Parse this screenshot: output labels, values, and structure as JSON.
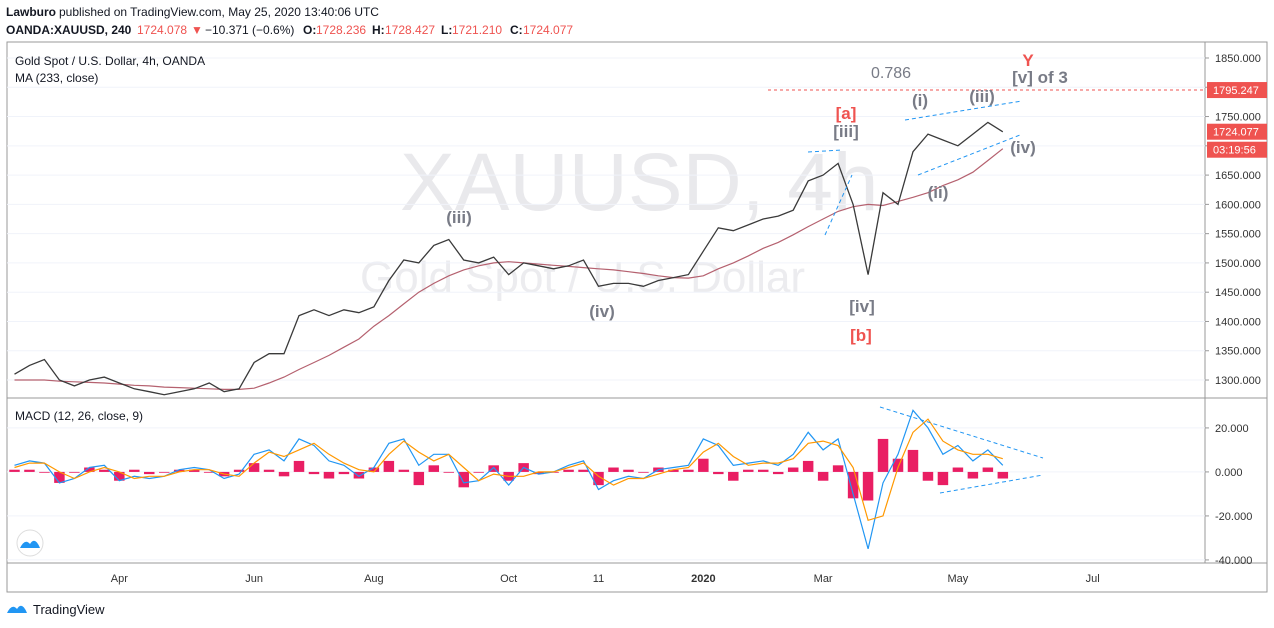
{
  "header": {
    "author": "Lawburo",
    "published": "published on TradingView.com, May 25, 2020 13:40:06 UTC",
    "symbol": "OANDA:XAUUSD, 240",
    "last": "1724.078",
    "arrow": "▼",
    "change": "−10.371 (−0.6%)",
    "o_label": "O:",
    "o": "1728.236",
    "h_label": "H:",
    "h": "1728.427",
    "l_label": "L:",
    "l": "1721.210",
    "c_label": "C:",
    "c": "1724.077"
  },
  "watermark": {
    "symbol": "XAUUSD, 4h",
    "description": "Gold Spot / U.S. Dollar"
  },
  "footer": {
    "brand": "TradingView"
  },
  "chart_data": [
    {
      "type": "line",
      "categories": [
        null,
        null,
        null,
        null,
        null,
        null,
        null,
        "Apr",
        null,
        null,
        null,
        null,
        null,
        null,
        null,
        null,
        "Jun",
        null,
        null,
        null,
        null,
        null,
        null,
        null,
        "Aug",
        null,
        null,
        null,
        null,
        null,
        null,
        null,
        null,
        "Oct",
        null,
        null,
        null,
        null,
        null,
        "11",
        null,
        null,
        null,
        null,
        null,
        null,
        "2020",
        null,
        null,
        null,
        null,
        null,
        null,
        null,
        "Mar",
        null,
        null,
        null,
        null,
        null,
        null,
        null,
        null,
        "May",
        null,
        null,
        null,
        null,
        null,
        null,
        null,
        null,
        "Jul",
        null,
        null,
        null,
        null,
        null,
        null,
        null
      ],
      "series": [
        {
          "name": "Gold Spot / U.S. Dollar, 4h, OANDA",
          "color": "#3a3a3a",
          "values": [
            1310,
            1325,
            1335,
            1300,
            1290,
            1300,
            1305,
            1295,
            1285,
            1280,
            1275,
            1280,
            1285,
            1295,
            1280,
            1285,
            1330,
            1345,
            1345,
            1410,
            1420,
            1410,
            1420,
            1415,
            1425,
            1470,
            1505,
            1500,
            1530,
            1540,
            1505,
            1500,
            1510,
            1480,
            1500,
            1495,
            1490,
            1495,
            1505,
            1460,
            1465,
            1465,
            1460,
            1470,
            1475,
            1480,
            1520,
            1560,
            1555,
            1565,
            1575,
            1580,
            1590,
            1640,
            1650,
            1670,
            1600,
            1480,
            1620,
            1600,
            1690,
            1720,
            1710,
            1700,
            1720,
            1740,
            1724,
            null,
            null,
            null,
            null,
            null,
            null,
            null,
            null,
            null,
            null,
            null,
            null,
            null
          ]
        },
        {
          "name": "MA (233, close)",
          "color": "#b5616f",
          "values": [
            1300,
            1300,
            1300,
            1298,
            1297,
            1296,
            1295,
            1293,
            1291,
            1290,
            1288,
            1287,
            1286,
            1285,
            1284,
            1284,
            1286,
            1295,
            1305,
            1318,
            1330,
            1342,
            1356,
            1370,
            1392,
            1410,
            1430,
            1450,
            1465,
            1478,
            1488,
            1495,
            1500,
            1502,
            1500,
            1498,
            1496,
            1494,
            1492,
            1490,
            1488,
            1485,
            1482,
            1478,
            1475,
            1474,
            1478,
            1490,
            1500,
            1512,
            1525,
            1535,
            1548,
            1562,
            1575,
            1588,
            1596,
            1600,
            1598,
            1605,
            1612,
            1620,
            1632,
            1642,
            1655,
            1675,
            1695,
            null,
            null,
            null,
            null,
            null,
            null,
            null,
            null,
            null,
            null,
            null,
            null,
            null
          ]
        }
      ],
      "ylim": [
        1269.3,
        1877.3
      ],
      "yticks": [
        {
          "value": 1300,
          "label": "1300.000"
        },
        {
          "value": 1350,
          "label": "1350.000"
        },
        {
          "value": 1400,
          "label": "1400.000"
        },
        {
          "value": 1450,
          "label": "1450.000"
        },
        {
          "value": 1500,
          "label": "1500.000"
        },
        {
          "value": 1550,
          "label": "1550.000"
        },
        {
          "value": 1600,
          "label": "1600.000"
        },
        {
          "value": 1650,
          "label": "1650.000"
        },
        {
          "value": 1700,
          "label": "1700.000"
        },
        {
          "value": 1750,
          "label": "1750.000"
        },
        {
          "value": 1800,
          "label": "1800.000"
        },
        {
          "value": 1850,
          "label": "1850.000"
        }
      ],
      "level": 1795.247,
      "last_price": 1724.077,
      "countdown": "03:19:56",
      "annotations": [
        "0.786",
        "Y",
        "[v] of 3",
        "(iii)",
        "(i)",
        "[a]",
        "[iii]",
        "(iv)",
        "(ii)",
        "(iii)",
        "(iv)",
        "[iv]",
        "[b]"
      ]
    },
    {
      "type": "macd",
      "series": [
        {
          "name": "MACD (12, 26, close, 9)",
          "color": "#2196f3",
          "values": [
            3,
            5,
            4,
            -5,
            -3,
            2,
            3,
            -4,
            -2,
            -3,
            -2,
            1,
            2,
            1,
            -3,
            -1,
            8,
            10,
            5,
            15,
            12,
            5,
            3,
            -2,
            2,
            13,
            15,
            3,
            8,
            8,
            -5,
            -4,
            2,
            -6,
            2,
            -1,
            0,
            3,
            5,
            -8,
            -4,
            -2,
            -3,
            1,
            2,
            3,
            15,
            12,
            3,
            4,
            5,
            3,
            8,
            18,
            10,
            15,
            -10,
            -35,
            -5,
            8,
            28,
            20,
            8,
            12,
            5,
            10,
            3,
            null,
            null,
            null,
            null,
            null,
            null,
            null,
            null,
            null,
            null,
            null,
            null,
            null
          ]
        },
        {
          "color": "#ff9800",
          "values": [
            2,
            4,
            4,
            0,
            -3,
            0,
            2,
            0,
            -3,
            -2,
            -2,
            0,
            1,
            1,
            -1,
            -2,
            4,
            9,
            7,
            10,
            13,
            8,
            4,
            1,
            0,
            8,
            14,
            9,
            5,
            8,
            2,
            -4,
            -1,
            -2,
            -2,
            0,
            0,
            2,
            4,
            -2,
            -6,
            -3,
            -3,
            -1,
            1,
            2,
            9,
            13,
            7,
            3,
            4,
            4,
            6,
            13,
            14,
            12,
            2,
            -22,
            -20,
            2,
            18,
            24,
            14,
            10,
            8,
            8,
            6,
            null,
            null,
            null,
            null,
            null,
            null,
            null,
            null,
            null,
            null,
            null,
            null,
            null
          ]
        },
        {
          "kind": "histogram",
          "color": "#e91e63",
          "values": [
            1,
            1,
            0,
            -5,
            0,
            2,
            1,
            -4,
            1,
            -1,
            0,
            1,
            1,
            0,
            -2,
            1,
            4,
            1,
            -2,
            5,
            -1,
            -3,
            -1,
            -3,
            2,
            5,
            1,
            -6,
            3,
            0,
            -7,
            0,
            3,
            -4,
            4,
            -1,
            0,
            1,
            1,
            -6,
            2,
            1,
            0,
            2,
            1,
            1,
            6,
            -1,
            -4,
            1,
            1,
            -1,
            2,
            5,
            -4,
            3,
            -12,
            -13,
            15,
            6,
            10,
            -4,
            -6,
            2,
            -3,
            2,
            -3,
            null,
            null,
            null,
            null,
            null,
            null,
            null,
            null,
            null,
            null,
            null,
            null,
            null
          ]
        }
      ],
      "ylim": [
        -41.4,
        33.6
      ],
      "yticks": [
        {
          "value": 20,
          "label": "20.000"
        },
        {
          "value": 0,
          "label": "0.000"
        },
        {
          "value": -20,
          "label": "-20.000"
        },
        {
          "value": -40,
          "label": "-40.000"
        }
      ]
    }
  ]
}
